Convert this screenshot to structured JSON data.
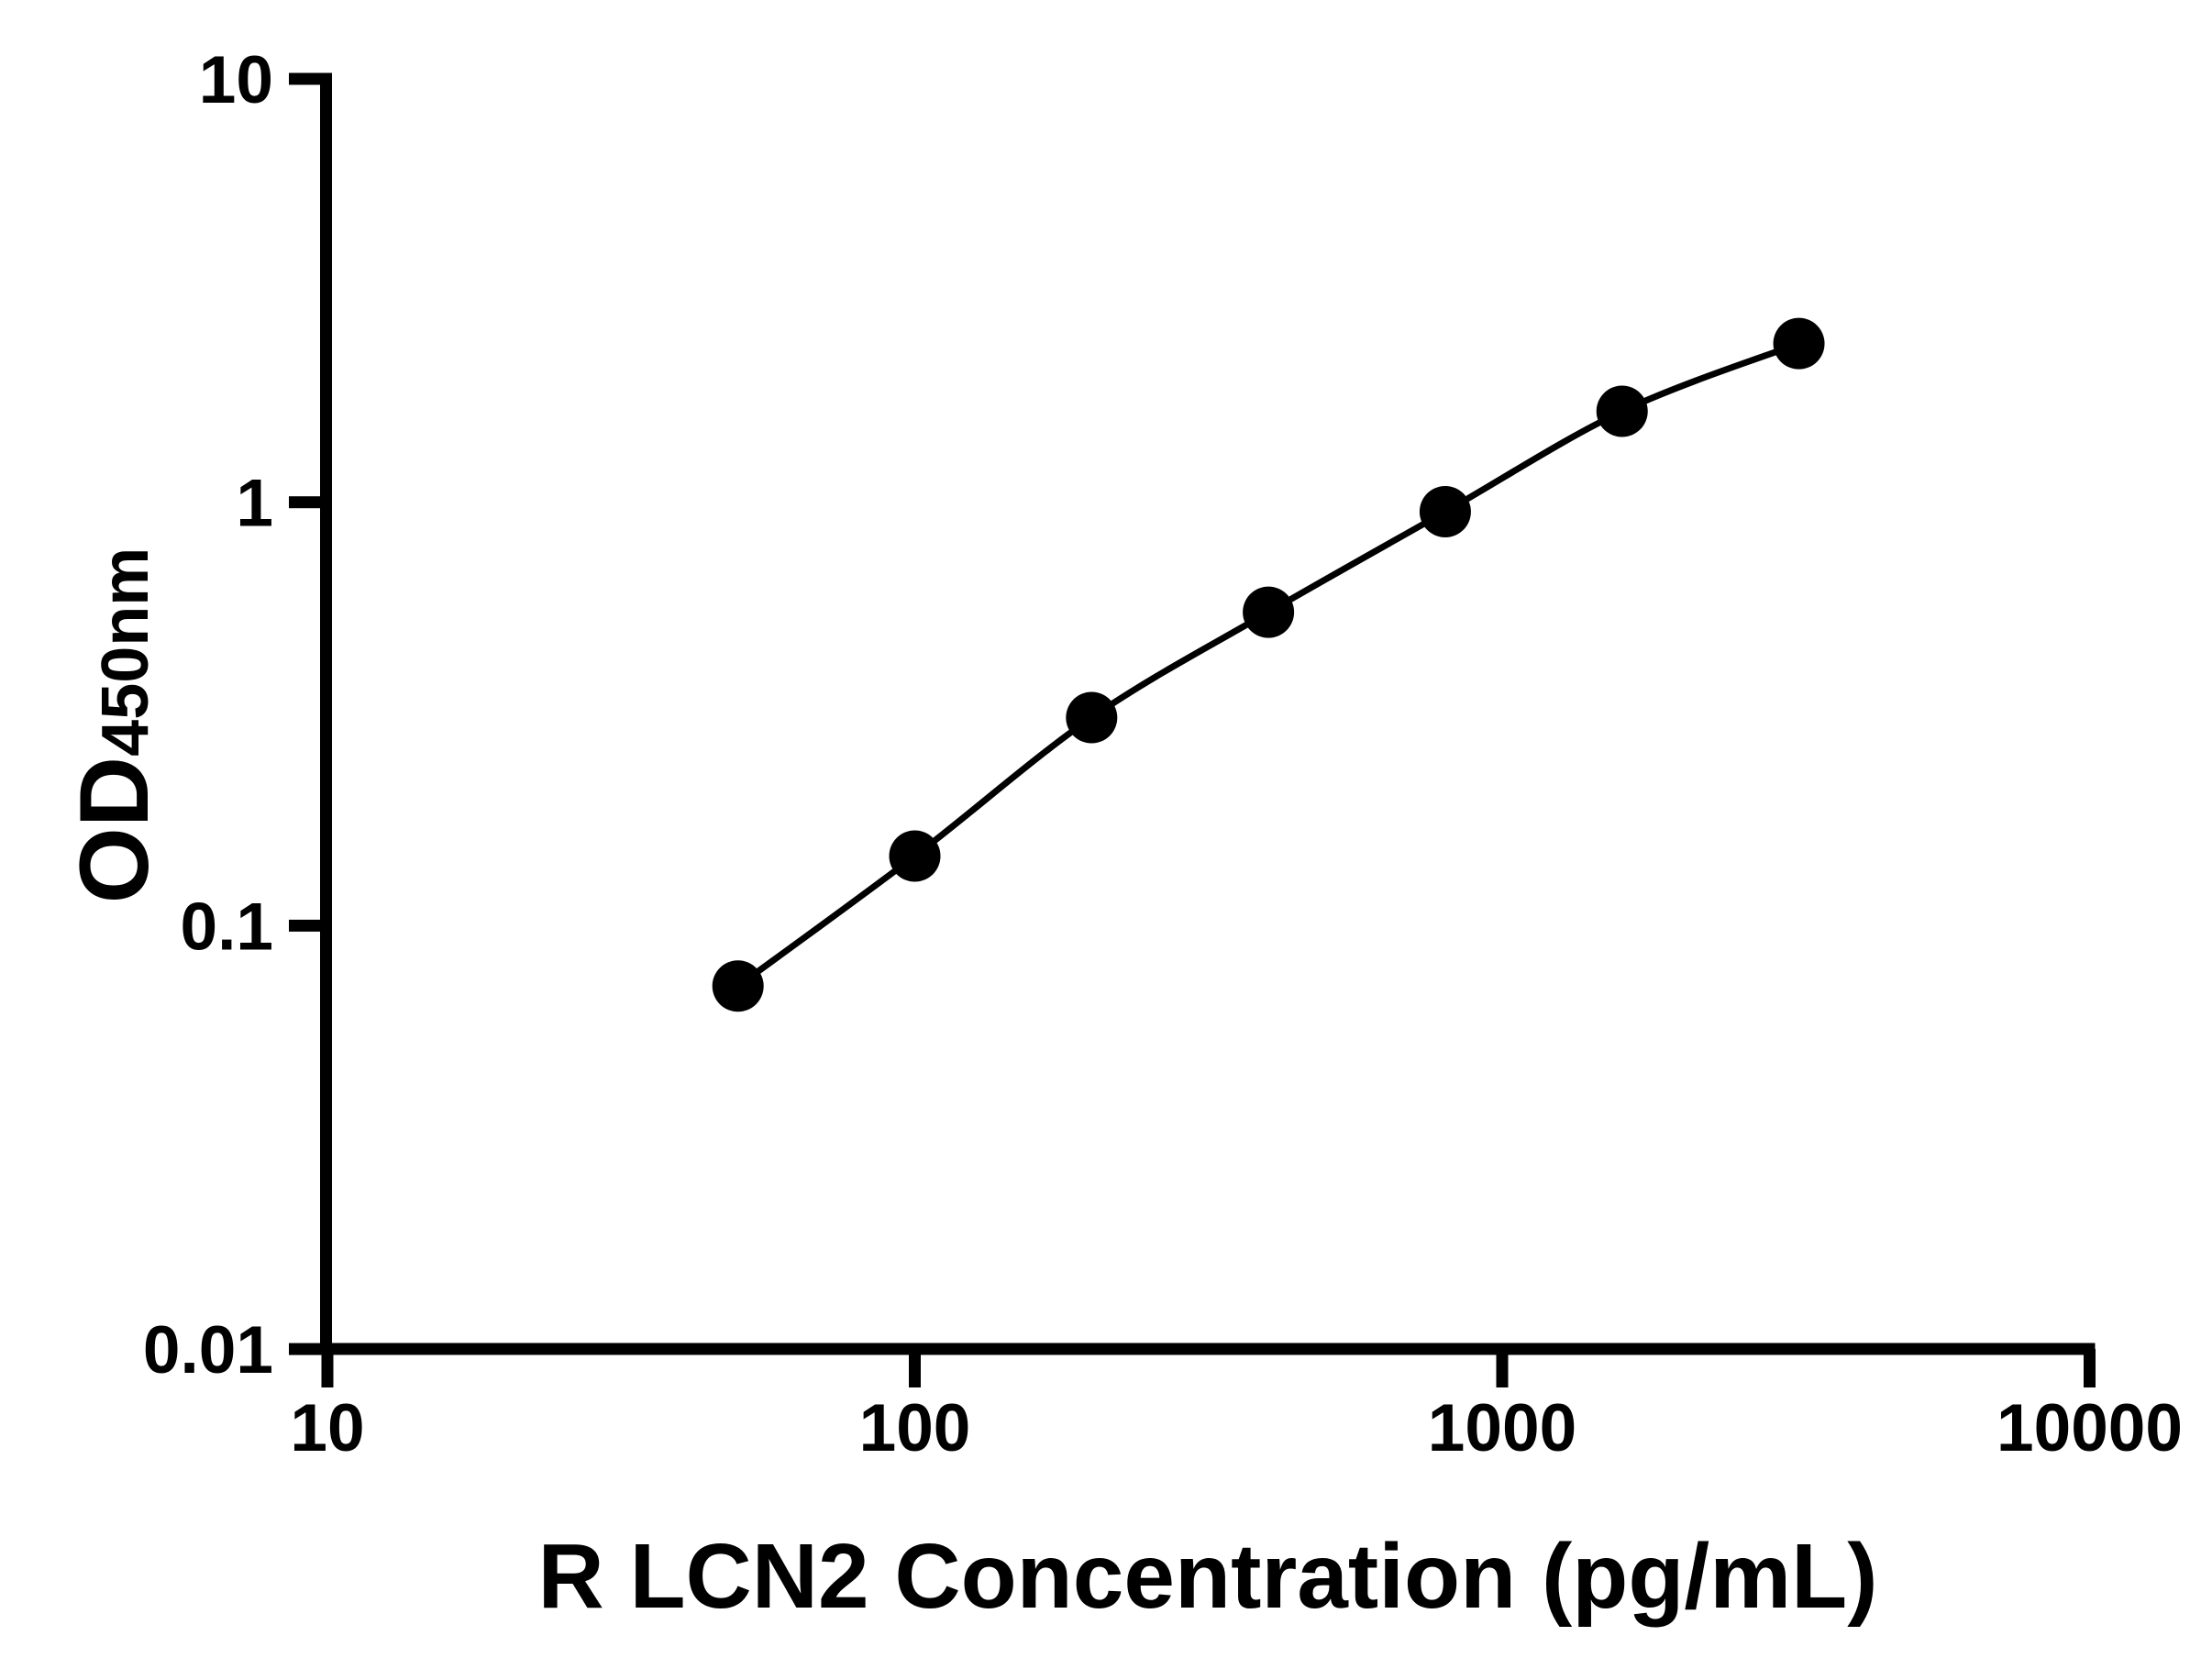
{
  "figure": {
    "background": "#ffffff",
    "ink_color": "#000000"
  },
  "chart_data": {
    "type": "line",
    "title": "",
    "xlabel": "R LCN2 Concentration (pg/mL)",
    "ylabel": {
      "main": "OD",
      "sub": "450nm"
    },
    "x_scale": "log",
    "y_scale": "log",
    "xlim": [
      10,
      10000
    ],
    "ylim": [
      0.01,
      10
    ],
    "grid": false,
    "legend": "none",
    "marker": "filled-circle",
    "marker_color": "#000000",
    "line_color": "#000000",
    "x_ticks": [
      {
        "value": 10,
        "label": "10"
      },
      {
        "value": 100,
        "label": "100"
      },
      {
        "value": 1000,
        "label": "1000"
      },
      {
        "value": 10000,
        "label": "10000"
      }
    ],
    "y_ticks": [
      {
        "value": 10,
        "label": "10"
      },
      {
        "value": 1,
        "label": "1"
      },
      {
        "value": 0.1,
        "label": "0.1"
      },
      {
        "value": 0.01,
        "label": "0.01"
      }
    ],
    "series": [
      {
        "x": [
          50,
          100,
          200,
          400,
          800,
          1600,
          3200
        ],
        "y": [
          0.072,
          0.146,
          0.31,
          0.55,
          0.95,
          1.64,
          2.37
        ]
      }
    ]
  }
}
